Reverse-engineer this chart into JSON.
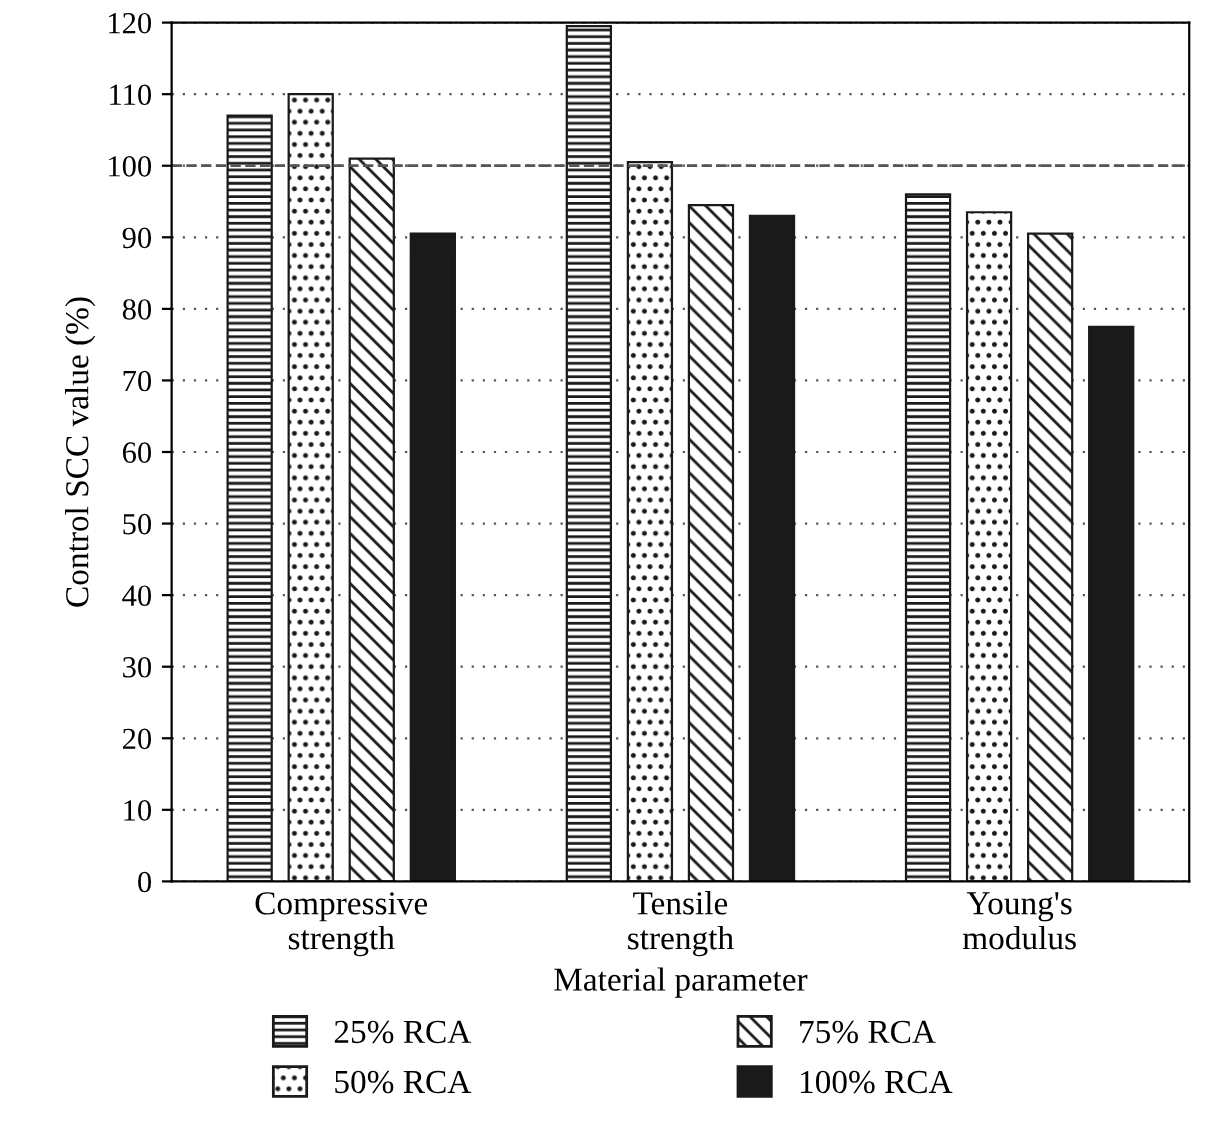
{
  "chart_data": {
    "type": "bar",
    "xlabel": "Material parameter",
    "ylabel": "Control SCC value (%)",
    "categories": [
      "Compressive\nstrength",
      "Tensile\nstrength",
      "Young's\nmodulus"
    ],
    "series": [
      {
        "name": "25% RCA",
        "color": "#1a1a1a",
        "values": [
          107,
          119.5,
          96
        ]
      },
      {
        "name": "50% RCA",
        "color": "#1a1a1a",
        "values": [
          110,
          100.5,
          93.5
        ]
      },
      {
        "name": "75% RCA",
        "color": "#1a1a1a",
        "values": [
          101,
          94.5,
          90.5
        ]
      },
      {
        "name": "100% RCA",
        "color": "#1a1a1a",
        "values": [
          90.5,
          93,
          77.5
        ]
      }
    ],
    "ylim": [
      0,
      120
    ],
    "yticks": [
      0,
      10,
      20,
      30,
      40,
      50,
      60,
      70,
      80,
      90,
      100,
      110,
      120
    ],
    "ref_lines": [
      {
        "axis": "y",
        "value": 100,
        "line_style": "dashed",
        "color": "#555555"
      }
    ],
    "grid": "y",
    "legend": "bottom"
  }
}
